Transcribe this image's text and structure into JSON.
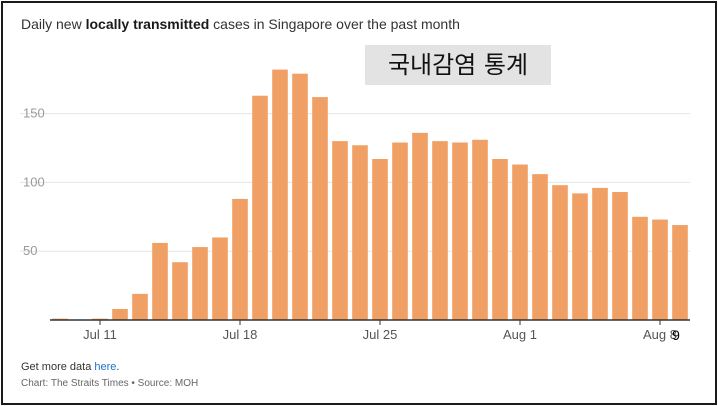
{
  "title": {
    "prefix": "Daily new ",
    "bold": "locally transmitted",
    "suffix": " cases in Singapore over the past month"
  },
  "overlay_label": "국내감염 통계",
  "footer": {
    "more_prefix": "Get more data ",
    "more_link": "here",
    "more_suffix": ".",
    "credit": "Chart: The Straits Times • Source: MOH"
  },
  "chart_data": {
    "type": "bar",
    "title": "Daily new locally transmitted cases in Singapore over the past month",
    "xlabel": "",
    "ylabel": "",
    "ylim": [
      0,
      185
    ],
    "yticks": [
      50,
      100,
      150
    ],
    "grid": true,
    "bar_color": "#f0a064",
    "x_tick_labels": [
      {
        "index": 2,
        "label": "Jul 11"
      },
      {
        "index": 9,
        "label": "Jul 18"
      },
      {
        "index": 16,
        "label": "Jul 25"
      },
      {
        "index": 23,
        "label": "Aug 1"
      },
      {
        "index": 30,
        "label": "Aug 8"
      }
    ],
    "extra_tick": {
      "index": 31,
      "label": "9"
    },
    "categories": [
      "Jul 9",
      "Jul 10",
      "Jul 11",
      "Jul 12",
      "Jul 13",
      "Jul 14",
      "Jul 15",
      "Jul 16",
      "Jul 17",
      "Jul 18",
      "Jul 19",
      "Jul 20",
      "Jul 21",
      "Jul 22",
      "Jul 23",
      "Jul 24",
      "Jul 25",
      "Jul 26",
      "Jul 27",
      "Jul 28",
      "Jul 29",
      "Jul 30",
      "Jul 31",
      "Aug 1",
      "Aug 2",
      "Aug 3",
      "Aug 4",
      "Aug 5",
      "Aug 6",
      "Aug 7",
      "Aug 8",
      "Aug 9"
    ],
    "values": [
      1,
      0,
      1,
      8,
      19,
      56,
      42,
      53,
      60,
      88,
      163,
      182,
      179,
      162,
      130,
      127,
      117,
      129,
      136,
      130,
      129,
      131,
      117,
      113,
      106,
      98,
      92,
      96,
      93,
      75,
      73,
      69
    ]
  }
}
